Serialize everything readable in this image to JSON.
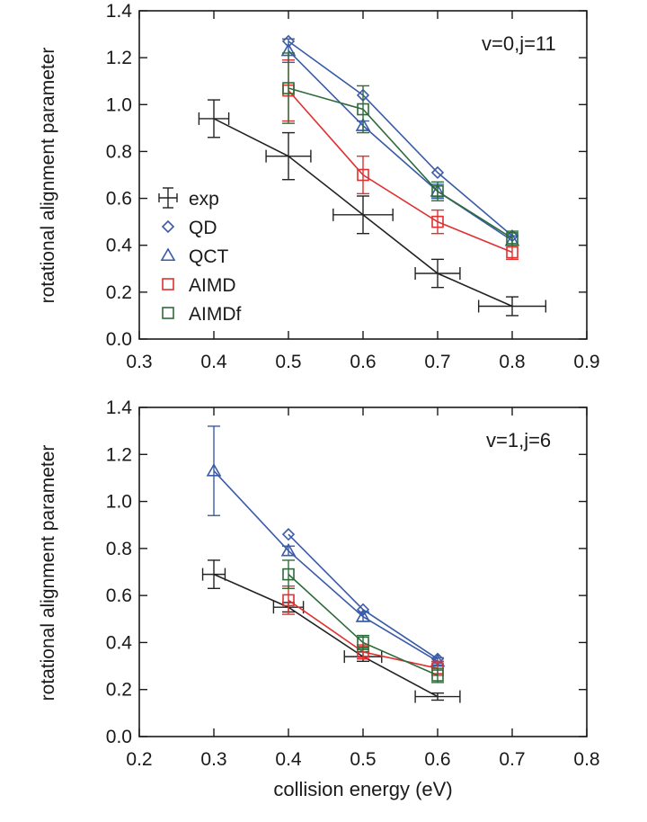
{
  "chart_data": [
    {
      "type": "line",
      "annotation": "v=0,j=11",
      "title": "",
      "xlabel": "",
      "ylabel": "rotational alignment parameter",
      "xlim": [
        0.3,
        0.9
      ],
      "ylim": [
        0.0,
        1.4
      ],
      "xticks": [
        0.3,
        0.4,
        0.5,
        0.6,
        0.7,
        0.8,
        0.9
      ],
      "yticks": [
        0.0,
        0.2,
        0.4,
        0.6,
        0.8,
        1.0,
        1.2,
        1.4
      ],
      "xtick_labels": [
        "0.3",
        "0.4",
        "0.5",
        "0.6",
        "0.7",
        "0.8",
        "0.9"
      ],
      "ytick_labels": [
        "0.0",
        "0.2",
        "0.4",
        "0.6",
        "0.8",
        "1.0",
        "1.2",
        "1.4"
      ],
      "legend": [
        "exp",
        "QD",
        "QCT",
        "AIMD",
        "AIMDf"
      ],
      "legend_position": "left",
      "series": [
        {
          "name": "exp",
          "color": "#222222",
          "marker": "none",
          "x": [
            0.4,
            0.5,
            0.6,
            0.7,
            0.8
          ],
          "y": [
            0.94,
            0.78,
            0.53,
            0.28,
            0.14
          ],
          "xerr": [
            0.02,
            0.03,
            0.04,
            0.03,
            0.045
          ],
          "yerr": [
            0.08,
            0.1,
            0.08,
            0.06,
            0.04
          ]
        },
        {
          "name": "QD",
          "color": "#3a5ba8",
          "marker": "diamond",
          "x": [
            0.5,
            0.6,
            0.7,
            0.8
          ],
          "y": [
            1.27,
            1.04,
            0.71,
            0.44
          ]
        },
        {
          "name": "QCT",
          "color": "#3a5ba8",
          "marker": "triangle",
          "x": [
            0.5,
            0.6,
            0.7,
            0.8
          ],
          "y": [
            1.23,
            0.91,
            0.63,
            0.42
          ],
          "yerr": [
            0.05,
            0.02,
            0.03,
            0.02
          ]
        },
        {
          "name": "AIMD",
          "color": "#e03030",
          "marker": "square",
          "x": [
            0.5,
            0.6,
            0.7,
            0.8
          ],
          "y": [
            1.06,
            0.7,
            0.5,
            0.37
          ],
          "yerr": [
            0.13,
            0.08,
            0.05,
            0.03
          ]
        },
        {
          "name": "AIMDf",
          "color": "#2e6b3a",
          "marker": "square",
          "x": [
            0.5,
            0.6,
            0.7,
            0.8
          ],
          "y": [
            1.07,
            0.98,
            0.63,
            0.43
          ],
          "yerr": [
            0.15,
            0.1,
            0.04,
            0.03
          ]
        }
      ]
    },
    {
      "type": "line",
      "annotation": "v=1,j=6",
      "title": "",
      "xlabel": "collision energy (eV)",
      "ylabel": "rotational alignment parameter",
      "xlim": [
        0.2,
        0.8
      ],
      "ylim": [
        0.0,
        1.4
      ],
      "xticks": [
        0.2,
        0.3,
        0.4,
        0.5,
        0.6,
        0.7,
        0.8
      ],
      "yticks": [
        0.0,
        0.2,
        0.4,
        0.6,
        0.8,
        1.0,
        1.2,
        1.4
      ],
      "xtick_labels": [
        "0.2",
        "0.3",
        "0.4",
        "0.5",
        "0.6",
        "0.7",
        "0.8"
      ],
      "ytick_labels": [
        "0.0",
        "0.2",
        "0.4",
        "0.6",
        "0.8",
        "1.0",
        "1.2",
        "1.4"
      ],
      "series": [
        {
          "name": "exp",
          "color": "#222222",
          "marker": "none",
          "x": [
            0.3,
            0.4,
            0.5,
            0.6
          ],
          "y": [
            0.69,
            0.55,
            0.34,
            0.17
          ],
          "xerr": [
            0.015,
            0.02,
            0.025,
            0.03
          ],
          "yerr": [
            0.06,
            0.02,
            0.02,
            0.015
          ]
        },
        {
          "name": "QD",
          "color": "#3a5ba8",
          "marker": "diamond",
          "x": [
            0.4,
            0.5,
            0.6
          ],
          "y": [
            0.86,
            0.54,
            0.33
          ]
        },
        {
          "name": "QCT",
          "color": "#3a5ba8",
          "marker": "triangle",
          "x": [
            0.3,
            0.4,
            0.5,
            0.6
          ],
          "y": [
            1.13,
            0.79,
            0.51,
            0.32
          ],
          "yerr": [
            0.19,
            0.02,
            0.02,
            0.015
          ]
        },
        {
          "name": "AIMD",
          "color": "#e03030",
          "marker": "square",
          "x": [
            0.4,
            0.5,
            0.6
          ],
          "y": [
            0.58,
            0.36,
            0.29
          ],
          "yerr": [
            0.06,
            0.03,
            0.03
          ]
        },
        {
          "name": "AIMDf",
          "color": "#2e6b3a",
          "marker": "square",
          "x": [
            0.4,
            0.5,
            0.6
          ],
          "y": [
            0.69,
            0.4,
            0.26
          ],
          "yerr": [
            0.06,
            0.03,
            0.03
          ]
        }
      ]
    }
  ]
}
